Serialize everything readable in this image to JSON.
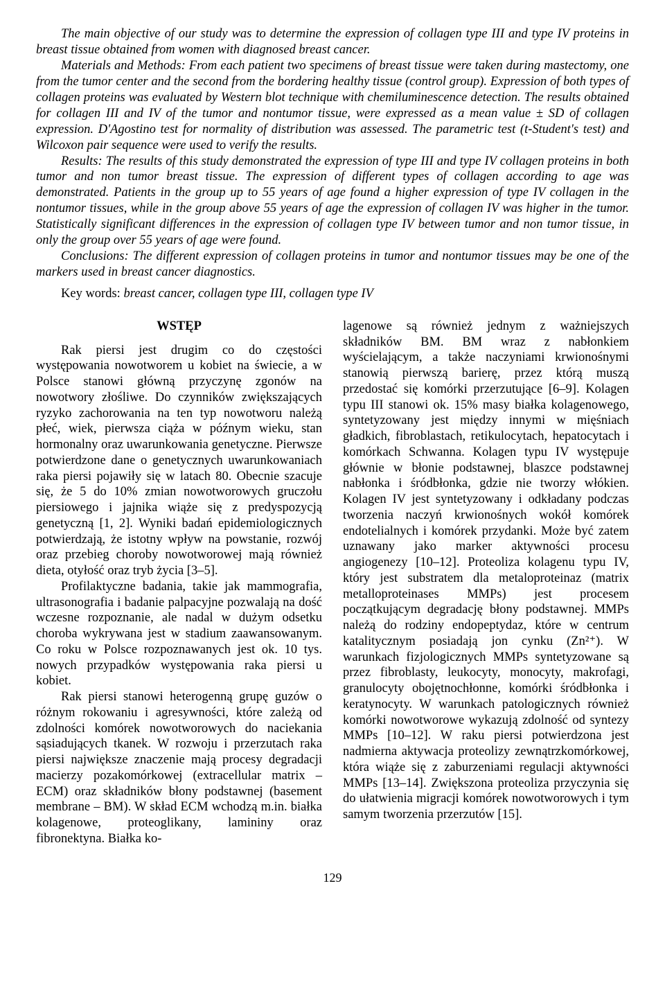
{
  "abstract": {
    "p1": "The main objective of our study was to determine the expression of collagen type III and type IV proteins in breast tissue obtained from women with diagnosed breast cancer.",
    "p2": "Materials and Methods: From each patient two specimens of breast tissue were taken during mastectomy, one from the tumor center and the second from the bordering healthy tissue (control group). Expression of both types of collagen proteins was evaluated by Western blot technique with chemiluminescence detection. The results obtained for collagen III and IV of the tumor and nontumor tissue, were expressed as a mean value ± SD of collagen expression. D'Agostino test for normality of distribution was assessed. The parametric test (t-Student's test) and Wilcoxon pair sequence were used to verify the results.",
    "p3": "Results: The results of this study demonstrated the expression of type III and type IV collagen proteins in both tumor and non tumor breast tissue. The expression of different types of collagen according to age was demonstrated. Patients in the group up to 55 years of age found a higher expression of type IV collagen in the nontumor tissues, while in the group above 55 years of age the expression of collagen IV was higher in the tumor. Statistically significant differences in the expression of collagen type IV between tumor and non tumor tissue, in only the group over 55 years of age were found.",
    "p4": "Conclusions: The different expression of collagen proteins in tumor and nontumor tissues may be one of the markers used in breast cancer diagnostics."
  },
  "keywords": {
    "label": "Key words:",
    "body": " breast cancer, collagen type III, collagen type IV"
  },
  "section_head": "WSTĘP",
  "left": {
    "p1": "Rak piersi jest drugim co do częstości występowania nowotworem u kobiet na świecie, a w Polsce stanowi główną przyczynę zgonów na nowotwory złośliwe. Do czynników zwiększających ryzyko zachorowania na ten typ nowotworu należą płeć, wiek, pierwsza ciąża w późnym wieku, stan hormonalny oraz uwarunkowania genetyczne. Pierwsze potwierdzone dane o genetycznych uwarunkowaniach raka piersi pojawiły się w latach 80. Obecnie szacuje się, że 5 do 10% zmian nowotworowych gruczołu piersiowego i jajnika wiąże się z predyspozycją genetyczną [1, 2]. Wyniki badań epidemiologicznych potwierdzają, że istotny wpływ na powstanie, rozwój oraz przebieg choroby nowotworowej mają również dieta, otyłość oraz tryb życia [3–5].",
    "p2": "Profilaktyczne badania, takie jak mammografia, ultrasonografia i badanie palpacyjne pozwalają na dość wczesne rozpoznanie, ale nadal w dużym odsetku choroba wykrywana jest w stadium zaawansowanym. Co roku w Polsce rozpoznawanych jest ok. 10 tys. nowych przypadków występowania raka piersi u kobiet.",
    "p3": "Rak piersi stanowi heterogenną grupę guzów o różnym rokowaniu i agresywności, które zależą od zdolności komórek nowotworowych do naciekania sąsiadujących tkanek. W rozwoju i przerzutach raka piersi największe znaczenie mają procesy degradacji macierzy pozakomórkowej (extracellular matrix – ECM) oraz składników błony podstawnej (basement membrane – BM). W skład ECM wchodzą m.in. białka kolagenowe, proteoglikany, lamininy oraz fibronektyna. Białka ko-"
  },
  "right": {
    "p1": "lagenowe są również jednym z ważniejszych składników BM. BM wraz z nabłonkiem wyścielającym, a także naczyniami krwionośnymi stanowią pierwszą barierę, przez którą muszą przedostać się komórki przerzutujące [6–9]. Kolagen typu III stanowi ok. 15% masy białka kolagenowego, syntetyzowany jest między innymi w mięśniach gładkich, fibroblastach, retikulocytach, hepatocytach i komórkach Schwanna. Kolagen typu IV występuje głównie w błonie podstawnej, blaszce podstawnej nabłonka i śródbłonka, gdzie nie tworzy włókien. Kolagen IV jest syntetyzowany i odkładany podczas tworzenia naczyń krwionośnych wokół komórek endotelialnych i komórek przydanki. Może być zatem uznawany jako marker aktywności procesu angiogenezy [10–12]. Proteoliza kolagenu typu IV, który jest substratem dla metaloproteinaz (matrix metalloproteinases MMPs) jest procesem początkującym degradację błony podstawnej. MMPs należą do rodziny endopeptydaz, które w centrum katalitycznym posiadają jon cynku (Zn²⁺). W warunkach fizjologicznych MMPs syntetyzowane są przez fibroblasty, leukocyty, monocyty, makrofagi, granulocyty obojętnochłonne, komórki śródbłonka i keratynocyty. W warunkach patologicznych również komórki nowotworowe wykazują zdolność od syntezy MMPs [10–12]. W raku piersi potwierdzona jest nadmierna aktywacja proteolizy zewnątrzkomórkowej, która wiąże się z zaburzeniami regulacji aktywności MMPs [13–14]. Zwiększona proteoliza przyczynia się do ułatwienia migracji komórek nowotworowych i tym samym tworzenia przerzutów [15]."
  },
  "page_number": "129"
}
